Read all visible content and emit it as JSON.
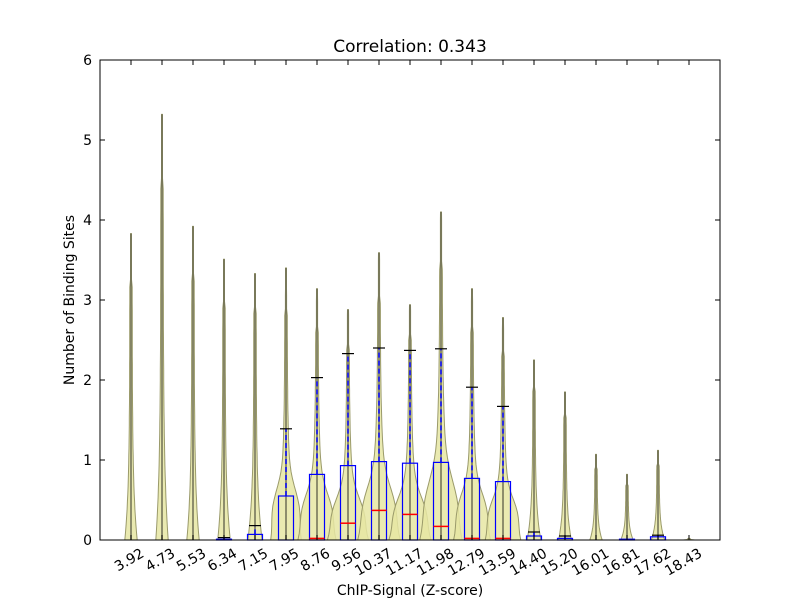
{
  "chart_data": {
    "type": "violin+box",
    "title": "Correlation: 0.343",
    "xlabel": "ChIP-Signal (Z-score)",
    "ylabel": "Number of Binding Sites",
    "ylim": [
      0,
      6
    ],
    "yticks": [
      "0",
      "1",
      "2",
      "3",
      "4",
      "5",
      "6"
    ],
    "grid": false,
    "categories": [
      "3.92",
      "4.73",
      "5.53",
      "6.34",
      "7.15",
      "7.95",
      "8.76",
      "9.56",
      "10.37",
      "11.17",
      "11.98",
      "12.79",
      "13.59",
      "14.40",
      "15.20",
      "16.01",
      "16.81",
      "17.62",
      "18.43"
    ],
    "violin_max": [
      3.83,
      5.32,
      3.92,
      3.51,
      3.33,
      3.4,
      3.14,
      2.88,
      3.59,
      2.94,
      4.1,
      3.14,
      2.78,
      2.25,
      1.85,
      1.07,
      0.82,
      1.12,
      0.0
    ],
    "box": {
      "q1": [
        0,
        0,
        0,
        0,
        0,
        0,
        0,
        0,
        0,
        0,
        0,
        0,
        0,
        0,
        0,
        0,
        0,
        0,
        0
      ],
      "median": [
        0,
        0,
        0,
        0,
        0,
        0,
        0.02,
        0.21,
        0.37,
        0.32,
        0.17,
        0.02,
        0.02,
        0,
        0,
        0,
        0,
        0,
        0
      ],
      "q3": [
        0,
        0,
        0,
        0.01,
        0.07,
        0.55,
        0.82,
        0.93,
        0.98,
        0.96,
        0.97,
        0.77,
        0.73,
        0.05,
        0.02,
        0,
        0.01,
        0.04,
        0
      ],
      "whisker_high": [
        0,
        0,
        0,
        0.03,
        0.18,
        1.39,
        2.03,
        2.33,
        2.4,
        2.37,
        2.39,
        1.91,
        1.67,
        0.1,
        0.05,
        0,
        0.01,
        0.06,
        0
      ]
    },
    "colors": {
      "violin_fill": "#e6e6a3",
      "violin_stroke": "#9a9a6a",
      "box": "#0000ff",
      "median": "#ff0000",
      "cap": "#000000",
      "spike": "#6e6e55"
    }
  }
}
